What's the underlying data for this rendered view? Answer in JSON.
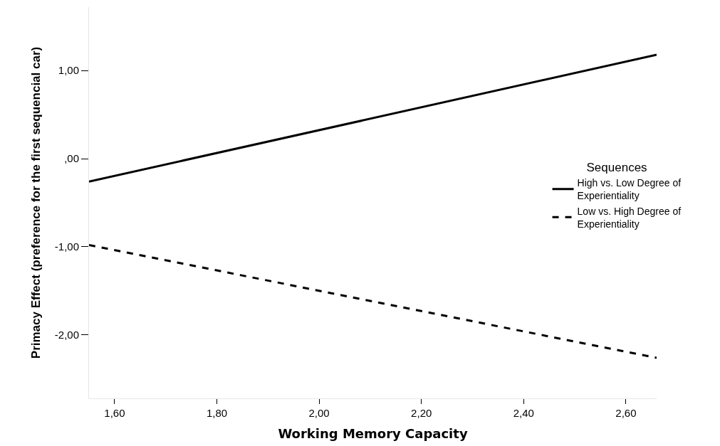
{
  "chart_data": {
    "type": "line",
    "xlabel": "Working Memory Capacity",
    "ylabel": "Primacy Effect (preference for the first sequencial car)",
    "legend_title": "Sequences",
    "x": [
      1.55,
      2.66
    ],
    "series": [
      {
        "name": "High vs. Low Degree of\nExperientiality",
        "color": "#000000",
        "values": [
          -0.26,
          1.18
        ],
        "line_style": "solid"
      },
      {
        "name": "Low vs. High Degree of\nExperientiality",
        "color": "#000000",
        "values": [
          -0.98,
          -2.26
        ],
        "line_style": "dashed"
      }
    ],
    "xlim": [
      1.55,
      2.66
    ],
    "ylim": [
      -2.72,
      1.72
    ],
    "xticks": [
      {
        "value": 1.6,
        "label": "1,60"
      },
      {
        "value": 1.8,
        "label": "1,80"
      },
      {
        "value": 2.0,
        "label": "2,00"
      },
      {
        "value": 2.2,
        "label": "2,20"
      },
      {
        "value": 2.4,
        "label": "2,40"
      },
      {
        "value": 2.6,
        "label": "2,60"
      }
    ],
    "yticks": [
      {
        "value": -2,
        "label": "-2,00"
      },
      {
        "value": -1,
        "label": "-1,00"
      },
      {
        "value": 0,
        "label": ",00"
      },
      {
        "value": 1,
        "label": "1,00"
      }
    ],
    "legend": "right",
    "marker": "none"
  }
}
